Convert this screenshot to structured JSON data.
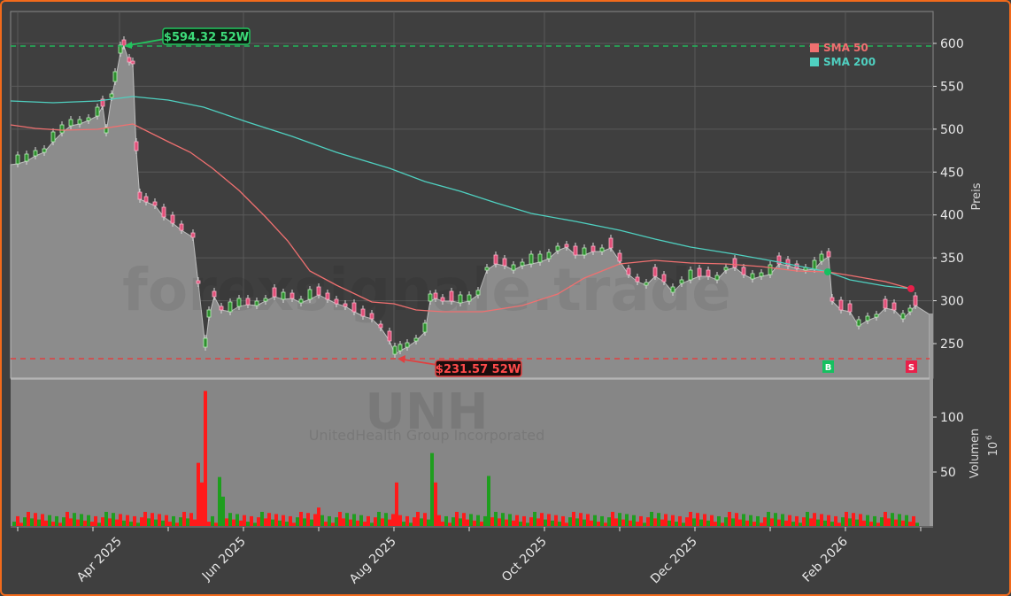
{
  "chart_data": [
    {
      "type": "candlestick",
      "title": "UNH",
      "subtitle": "UnitedHealth Group Incorporated",
      "watermark": "forexsignale.trade",
      "ylabel": "Preis",
      "ylim": [
        212,
        636
      ],
      "yticks": [
        250,
        300,
        350,
        400,
        450,
        500,
        550,
        600
      ],
      "xticks": [
        "Apr 2025",
        "Jun 2025",
        "Aug 2025",
        "Oct 2025",
        "Dec 2025",
        "Feb 2026"
      ],
      "grid": true,
      "legend_position": "upper right",
      "legend": [
        {
          "label": "SMA 50",
          "color": "#f07070"
        },
        {
          "label": "SMA 200",
          "color": "#4fd0c0"
        }
      ],
      "annotations": [
        {
          "text": "$594.32 52W",
          "value": 594.32,
          "kind": "52w-high",
          "color": "#22c55e"
        },
        {
          "text": "$231.57 52W",
          "value": 231.57,
          "kind": "52w-low",
          "color": "#ef4444"
        }
      ],
      "signals": [
        {
          "label": "B",
          "kind": "buy",
          "date": "Jan 2026",
          "color": "#16c060"
        },
        {
          "label": "S",
          "kind": "sell",
          "date": "Feb 2026",
          "color": "#e8204a"
        }
      ],
      "close_points": [
        [
          "Feb 2025",
          460
        ],
        [
          "Mar 2025",
          470
        ],
        [
          "Mar 2025",
          500
        ],
        [
          "Mar 2025",
          510
        ],
        [
          "Apr 2025",
          525
        ],
        [
          "Apr 2025",
          500
        ],
        [
          "Apr 2025",
          580
        ],
        [
          "Apr 2025",
          575
        ],
        [
          "Apr 2025",
          420
        ],
        [
          "May 2025",
          405
        ],
        [
          "May 2025",
          385
        ],
        [
          "May 2025",
          310
        ],
        [
          "May 2025",
          250
        ],
        [
          "May 2025",
          300
        ],
        [
          "Jun 2025",
          290
        ],
        [
          "Jun 2025",
          300
        ],
        [
          "Jun 2025",
          305
        ],
        [
          "Jul 2025",
          300
        ],
        [
          "Jul 2025",
          305
        ],
        [
          "Jul 2025",
          290
        ],
        [
          "Jul 2025",
          280
        ],
        [
          "Aug 2025",
          240
        ],
        [
          "Aug 2025",
          250
        ],
        [
          "Aug 2025",
          300
        ],
        [
          "Aug 2025",
          295
        ],
        [
          "Sep 2025",
          305
        ],
        [
          "Sep 2025",
          345
        ],
        [
          "Sep 2025",
          335
        ],
        [
          "Sep 2025",
          345
        ],
        [
          "Oct 2025",
          365
        ],
        [
          "Oct 2025",
          355
        ],
        [
          "Oct 2025",
          360
        ],
        [
          "Nov 2025",
          325
        ],
        [
          "Nov 2025",
          315
        ],
        [
          "Nov 2025",
          330
        ],
        [
          "Dec 2025",
          330
        ],
        [
          "Dec 2025",
          330
        ],
        [
          "Jan 2026",
          340
        ],
        [
          "Jan 2026",
          350
        ],
        [
          "Jan 2026",
          285
        ],
        [
          "Feb 2026",
          270
        ],
        [
          "Feb 2026",
          290
        ],
        [
          "Feb 2026",
          285
        ]
      ],
      "series": [
        {
          "name": "SMA 50",
          "values_approx": [
            502,
            498,
            497,
            503,
            480,
            440,
            380,
            330,
            300,
            285,
            286,
            300,
            330,
            345,
            342,
            340,
            335,
            330,
            325,
            313
          ]
        },
        {
          "name": "SMA 200",
          "values_approx": [
            531,
            530,
            532,
            535,
            520,
            500,
            480,
            455,
            430,
            410,
            395,
            385,
            375,
            360,
            350,
            340,
            330,
            318,
            313
          ]
        }
      ]
    },
    {
      "type": "bar",
      "title": "Volumen",
      "ylabel": "Volumen",
      "yunit": "10^6",
      "yticks": [
        50,
        100
      ],
      "ylim": [
        0,
        135
      ],
      "colors": {
        "up": "#1e9e1e",
        "down": "#ff1a1a"
      },
      "notable_values": [
        {
          "date": "Apr 2025",
          "value": 28
        },
        {
          "date": "May 2025",
          "value": 124
        },
        {
          "date": "May 2025",
          "value": 70
        },
        {
          "date": "Aug 2025",
          "value": 67
        },
        {
          "date": "Sep 2025",
          "value": 46
        },
        {
          "date": "Jan 2026",
          "value": 65
        }
      ]
    }
  ],
  "labels": {
    "ylabel_price": "Preis",
    "ylabel_volume": "Volumen",
    "volume_unit": "10",
    "volume_unit_exp": "6",
    "title": "UNH",
    "subtitle": "UnitedHealth Group Incorporated",
    "watermark": "forexsignale.trade",
    "high_label": "$594.32 52W",
    "low_label": "$231.57 52W",
    "legend_sma50": "SMA 50",
    "legend_sma200": "SMA 200",
    "buy": "B",
    "sell": "S",
    "xticks": [
      "Apr 2025",
      "Jun 2025",
      "Aug 2025",
      "Oct 2025",
      "Dec 2025",
      "Feb 2026"
    ],
    "yticks_price": [
      "600",
      "550",
      "500",
      "450",
      "400",
      "350",
      "300",
      "250"
    ],
    "yticks_volume": [
      "100",
      "50"
    ]
  }
}
